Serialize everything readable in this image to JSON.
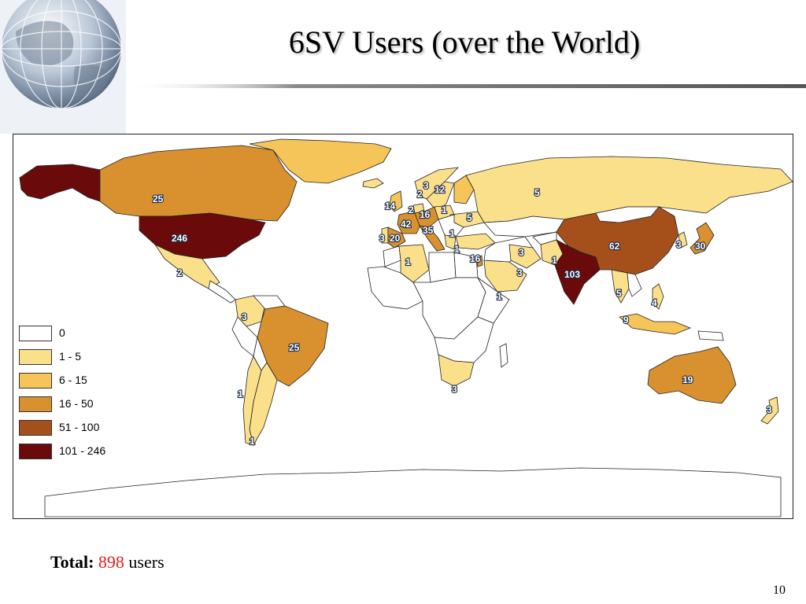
{
  "slide": {
    "title": "6SV Users (over the World)",
    "page_number": "10"
  },
  "total": {
    "label": "Total:",
    "value": "898",
    "unit": "users"
  },
  "legend": [
    {
      "label": "0",
      "color": "#ffffff"
    },
    {
      "label": "1 - 5",
      "color": "#fbe08c"
    },
    {
      "label": "6 - 15",
      "color": "#f6c55a"
    },
    {
      "label": "16 - 50",
      "color": "#d9912f"
    },
    {
      "label": "51 - 100",
      "color": "#a5501b"
    },
    {
      "label": "101 - 246",
      "color": "#6b0a0a"
    }
  ],
  "countries": [
    {
      "name": "Alaska (USA)",
      "class": "101 - 246",
      "color": "#6b0a0a"
    },
    {
      "name": "Canada",
      "users": "25",
      "class": "16 - 50",
      "color": "#d9912f"
    },
    {
      "name": "United States",
      "users": "246",
      "class": "101 - 246",
      "color": "#6b0a0a"
    },
    {
      "name": "Mexico",
      "users": "2",
      "class": "1 - 5",
      "color": "#fbe08c"
    },
    {
      "name": "Colombia",
      "users": "3",
      "class": "1 - 5",
      "color": "#fbe08c"
    },
    {
      "name": "Brazil",
      "users": "25",
      "class": "16 - 50",
      "color": "#d9912f"
    },
    {
      "name": "Chile",
      "users": "1",
      "class": "1 - 5",
      "color": "#fbe08c"
    },
    {
      "name": "Argentina",
      "users": "1",
      "class": "1 - 5",
      "color": "#fbe08c"
    },
    {
      "name": "Greenland",
      "class": "6 - 15",
      "color": "#f6c55a"
    },
    {
      "name": "Iceland",
      "class": "1 - 5",
      "color": "#fbe08c"
    },
    {
      "name": "United Kingdom",
      "users": "14",
      "class": "6 - 15",
      "color": "#f6c55a"
    },
    {
      "name": "Portugal",
      "users": "3",
      "class": "1 - 5",
      "color": "#fbe08c"
    },
    {
      "name": "Spain",
      "users": "20",
      "class": "16 - 50",
      "color": "#d9912f"
    },
    {
      "name": "France",
      "users": "42",
      "class": "16 - 50",
      "color": "#d9912f"
    },
    {
      "name": "Netherlands",
      "users": "2",
      "class": "1 - 5",
      "color": "#fbe08c"
    },
    {
      "name": "Germany",
      "users": "16",
      "class": "16 - 50",
      "color": "#d9912f"
    },
    {
      "name": "Italy",
      "users": "35",
      "class": "16 - 50",
      "color": "#d9912f"
    },
    {
      "name": "Norway",
      "users": "2",
      "class": "1 - 5",
      "color": "#fbe08c"
    },
    {
      "name": "Sweden",
      "users": "3",
      "class": "1 - 5",
      "color": "#fbe08c"
    },
    {
      "name": "Finland",
      "users": "12",
      "class": "6 - 15",
      "color": "#f6c55a"
    },
    {
      "name": "Poland",
      "users": "1",
      "class": "1 - 5",
      "color": "#fbe08c"
    },
    {
      "name": "Ukraine",
      "users": "5",
      "class": "1 - 5",
      "color": "#fbe08c"
    },
    {
      "name": "Russia",
      "users": "5",
      "class": "1 - 5",
      "color": "#fbe08c"
    },
    {
      "name": "Greece",
      "users": "1",
      "class": "1 - 5",
      "color": "#fbe08c"
    },
    {
      "name": "Turkey",
      "users": "1",
      "class": "1 - 5",
      "color": "#fbe08c"
    },
    {
      "name": "Algeria",
      "users": "1",
      "class": "1 - 5",
      "color": "#fbe08c"
    },
    {
      "name": "Israel",
      "users": "16",
      "class": "16 - 50",
      "color": "#d9912f"
    },
    {
      "name": "Saudi Arabia",
      "users": "1",
      "class": "1 - 5",
      "color": "#fbe08c"
    },
    {
      "name": "Iran",
      "users": "3",
      "class": "1 - 5",
      "color": "#fbe08c"
    },
    {
      "name": "Pakistan",
      "users": "3",
      "class": "1 - 5",
      "color": "#fbe08c"
    },
    {
      "name": "Nepal",
      "users": "1",
      "class": "1 - 5",
      "color": "#fbe08c"
    },
    {
      "name": "India",
      "users": "103",
      "class": "101 - 246",
      "color": "#6b0a0a"
    },
    {
      "name": "China",
      "users": "62",
      "class": "51 - 100",
      "color": "#a5501b"
    },
    {
      "name": "South Korea",
      "users": "3",
      "class": "1 - 5",
      "color": "#fbe08c"
    },
    {
      "name": "Japan",
      "users": "30",
      "class": "16 - 50",
      "color": "#d9912f"
    },
    {
      "name": "Thailand",
      "users": "5",
      "class": "1 - 5",
      "color": "#fbe08c"
    },
    {
      "name": "Philippines",
      "users": "4",
      "class": "1 - 5",
      "color": "#fbe08c"
    },
    {
      "name": "Malaysia / Indonesia",
      "users": "9",
      "class": "6 - 15",
      "color": "#f6c55a"
    },
    {
      "name": "Australia",
      "users": "19",
      "class": "16 - 50",
      "color": "#d9912f"
    },
    {
      "name": "New Zealand",
      "users": "3",
      "class": "1 - 5",
      "color": "#fbe08c"
    },
    {
      "name": "South Africa",
      "users": "3",
      "class": "1 - 5",
      "color": "#fbe08c"
    }
  ]
}
